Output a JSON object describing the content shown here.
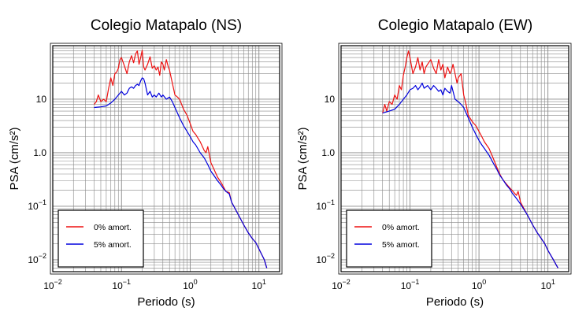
{
  "colors": {
    "series_0": "#ee1111",
    "series_5": "#0000dd",
    "grid": "#888888",
    "frame": "#000000"
  },
  "chart_data": [
    {
      "type": "line",
      "title": "Colegio Matapalo (NS)",
      "xlabel": "Periodo (s)",
      "ylabel": "PSA (cm/s²)",
      "xscale": "log",
      "yscale": "log",
      "xlim": [
        0.01,
        20
      ],
      "ylim": [
        0.006,
        100
      ],
      "xticks": [
        {
          "v": 0.01,
          "b": "10",
          "e": "−2"
        },
        {
          "v": 0.1,
          "b": "10",
          "e": "−1"
        },
        {
          "v": 1,
          "b": "10",
          "e": "0"
        },
        {
          "v": 10,
          "b": "10",
          "e": "1"
        }
      ],
      "yticks": [
        {
          "v": 0.01,
          "b": "10",
          "e": "−2"
        },
        {
          "v": 0.1,
          "b": "10",
          "e": "−1"
        },
        {
          "v": 1,
          "b": "1.0",
          "e": ""
        },
        {
          "v": 10,
          "b": "10",
          "e": ""
        }
      ],
      "grid": true,
      "legend_position": "bottom-left",
      "series": [
        {
          "name": "0% amort.",
          "color": "#ee1111",
          "x": [
            0.04,
            0.043,
            0.046,
            0.05,
            0.055,
            0.06,
            0.065,
            0.07,
            0.075,
            0.08,
            0.085,
            0.09,
            0.095,
            0.1,
            0.11,
            0.12,
            0.13,
            0.14,
            0.15,
            0.16,
            0.17,
            0.18,
            0.19,
            0.2,
            0.21,
            0.22,
            0.24,
            0.26,
            0.28,
            0.3,
            0.32,
            0.34,
            0.36,
            0.38,
            0.4,
            0.42,
            0.45,
            0.48,
            0.5,
            0.55,
            0.6,
            0.65,
            0.7,
            0.8,
            0.9,
            1.0,
            1.1,
            1.2,
            1.4,
            1.6,
            1.7,
            1.8,
            2.0,
            2.2,
            2.5,
            2.8,
            3.0,
            3.3,
            3.7,
            4.0,
            5.0,
            6.0,
            7.0,
            8.0,
            9.0,
            10.0,
            12.0,
            13.0
          ],
          "y": [
            8,
            9,
            12,
            9,
            10,
            9,
            16,
            25,
            18,
            30,
            32,
            38,
            55,
            60,
            42,
            30,
            50,
            65,
            48,
            70,
            80,
            45,
            60,
            82,
            40,
            35,
            45,
            62,
            38,
            42,
            35,
            40,
            28,
            50,
            45,
            35,
            55,
            40,
            35,
            20,
            12,
            11,
            10,
            6.5,
            5,
            3.5,
            2.5,
            2.2,
            1.6,
            1.1,
            1.0,
            1.3,
            0.65,
            0.5,
            0.35,
            0.28,
            0.24,
            0.19,
            0.18,
            0.12,
            0.07,
            0.045,
            0.032,
            0.025,
            0.021,
            0.016,
            0.01,
            0.007
          ]
        },
        {
          "name": "5% amort.",
          "color": "#0000dd",
          "x": [
            0.04,
            0.05,
            0.06,
            0.07,
            0.08,
            0.09,
            0.1,
            0.11,
            0.12,
            0.13,
            0.14,
            0.15,
            0.16,
            0.17,
            0.18,
            0.19,
            0.2,
            0.21,
            0.22,
            0.24,
            0.26,
            0.28,
            0.3,
            0.32,
            0.35,
            0.38,
            0.4,
            0.45,
            0.5,
            0.55,
            0.6,
            0.7,
            0.8,
            0.9,
            1.0,
            1.1,
            1.2,
            1.4,
            1.6,
            1.8,
            2.0,
            2.2,
            2.5,
            2.8,
            3.0,
            3.3,
            3.7,
            4.0,
            5.0,
            6.0,
            7.0,
            8.0,
            9.0,
            10.0,
            12.0,
            13.0
          ],
          "y": [
            7,
            7.2,
            7.5,
            8.5,
            10,
            12,
            14,
            12,
            13,
            16,
            17,
            16,
            18,
            19,
            18,
            22,
            25,
            24,
            20,
            12,
            14,
            11,
            12,
            11,
            13,
            11,
            12,
            10,
            11,
            9,
            7,
            4.5,
            3.2,
            2.5,
            2.0,
            1.6,
            1.4,
            1.0,
            0.8,
            0.6,
            0.45,
            0.38,
            0.3,
            0.25,
            0.22,
            0.19,
            0.17,
            0.12,
            0.07,
            0.045,
            0.032,
            0.025,
            0.021,
            0.016,
            0.01,
            0.007
          ]
        }
      ]
    },
    {
      "type": "line",
      "title": "Colegio Matapalo (EW)",
      "xlabel": "Periodo (s)",
      "ylabel": "PSA (cm/s²)",
      "xscale": "log",
      "yscale": "log",
      "xlim": [
        0.01,
        20
      ],
      "ylim": [
        0.006,
        100
      ],
      "xticks": [
        {
          "v": 0.01,
          "b": "10",
          "e": "−2"
        },
        {
          "v": 0.1,
          "b": "10",
          "e": "−1"
        },
        {
          "v": 1,
          "b": "10",
          "e": "0"
        },
        {
          "v": 10,
          "b": "10",
          "e": "1"
        }
      ],
      "yticks": [
        {
          "v": 0.01,
          "b": "10",
          "e": "−2"
        },
        {
          "v": 0.1,
          "b": "10",
          "e": "−1"
        },
        {
          "v": 1,
          "b": "1.0",
          "e": ""
        },
        {
          "v": 10,
          "b": "10",
          "e": ""
        }
      ],
      "grid": true,
      "legend_position": "bottom-left",
      "series": [
        {
          "name": "0% amort.",
          "color": "#ee1111",
          "x": [
            0.04,
            0.043,
            0.046,
            0.05,
            0.055,
            0.06,
            0.065,
            0.07,
            0.075,
            0.08,
            0.085,
            0.09,
            0.095,
            0.1,
            0.11,
            0.12,
            0.13,
            0.14,
            0.15,
            0.16,
            0.17,
            0.18,
            0.2,
            0.22,
            0.24,
            0.26,
            0.28,
            0.3,
            0.32,
            0.35,
            0.38,
            0.4,
            0.42,
            0.45,
            0.48,
            0.5,
            0.55,
            0.6,
            0.65,
            0.7,
            0.8,
            0.9,
            1.0,
            1.1,
            1.2,
            1.4,
            1.6,
            1.8,
            2.0,
            2.2,
            2.5,
            2.8,
            3.0,
            3.5,
            3.7,
            4.0,
            5.0,
            6.0,
            7.0,
            8.0,
            9.0,
            10.0,
            12.0,
            14.0
          ],
          "y": [
            5.5,
            8,
            6,
            9,
            8,
            12,
            10,
            18,
            15,
            28,
            40,
            60,
            80,
            60,
            30,
            40,
            60,
            35,
            50,
            30,
            40,
            45,
            55,
            38,
            30,
            55,
            35,
            45,
            25,
            40,
            30,
            35,
            45,
            30,
            20,
            25,
            30,
            12,
            8,
            5,
            3.8,
            3.2,
            2.5,
            2.0,
            1.6,
            1.2,
            0.8,
            0.55,
            0.4,
            0.32,
            0.26,
            0.22,
            0.2,
            0.16,
            0.19,
            0.12,
            0.07,
            0.045,
            0.032,
            0.025,
            0.02,
            0.015,
            0.01,
            0.007
          ]
        },
        {
          "name": "5% amort.",
          "color": "#0000dd",
          "x": [
            0.04,
            0.05,
            0.06,
            0.07,
            0.08,
            0.09,
            0.1,
            0.11,
            0.12,
            0.13,
            0.14,
            0.15,
            0.16,
            0.18,
            0.2,
            0.22,
            0.24,
            0.26,
            0.28,
            0.3,
            0.32,
            0.35,
            0.38,
            0.4,
            0.45,
            0.5,
            0.55,
            0.6,
            0.7,
            0.8,
            0.9,
            1.0,
            1.1,
            1.2,
            1.4,
            1.6,
            1.8,
            2.0,
            2.2,
            2.5,
            2.8,
            3.0,
            3.5,
            4.0,
            5.0,
            6.0,
            7.0,
            8.0,
            9.0,
            10.0,
            12.0,
            14.0
          ],
          "y": [
            5.5,
            6,
            6.5,
            8,
            10,
            12,
            15,
            16,
            18,
            15,
            17,
            20,
            16,
            18,
            15,
            18,
            16,
            14,
            15,
            12,
            16,
            14,
            13,
            18,
            10,
            9,
            8,
            7,
            4.5,
            3,
            2.2,
            1.7,
            1.4,
            1.2,
            0.9,
            0.65,
            0.5,
            0.38,
            0.32,
            0.25,
            0.21,
            0.18,
            0.14,
            0.11,
            0.07,
            0.045,
            0.032,
            0.025,
            0.02,
            0.015,
            0.01,
            0.007
          ]
        }
      ]
    }
  ]
}
